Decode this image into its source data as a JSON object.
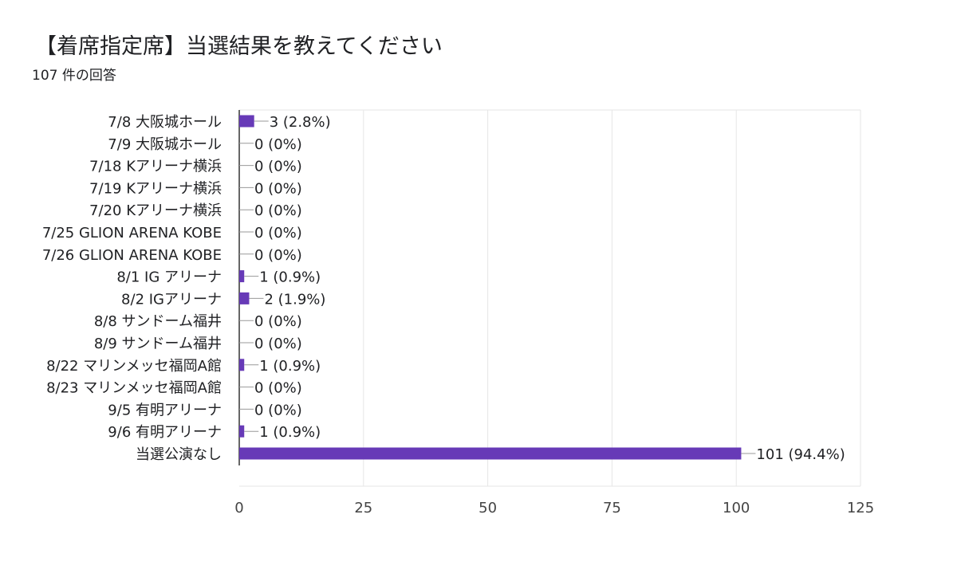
{
  "header": {
    "title": "【着席指定席】当選結果を教えてください",
    "response_count": "107 件の回答"
  },
  "colors": {
    "bar": "#673ab7",
    "grid": "#e6e6e6",
    "axis": "#333333",
    "leader": "#999999"
  },
  "chart_data": {
    "type": "bar",
    "orientation": "horizontal",
    "title": "【着席指定席】当選結果を教えてください",
    "categories": [
      "7/8 大阪城ホール",
      "7/9 大阪城ホール",
      "7/18 Kアリーナ横浜",
      "7/19 Kアリーナ横浜",
      "7/20 Kアリーナ横浜",
      "7/25 GLION ARENA KOBE",
      "7/26 GLION ARENA KOBE",
      "8/1 IG アリーナ",
      "8/2 IGアリーナ",
      "8/8 サンドーム福井",
      "8/9 サンドーム福井",
      "8/22 マリンメッセ福岡A館",
      "8/23 マリンメッセ福岡A館",
      "9/5 有明アリーナ",
      "9/6 有明アリーナ",
      "当選公演なし"
    ],
    "values": [
      3,
      0,
      0,
      0,
      0,
      0,
      0,
      1,
      2,
      0,
      0,
      1,
      0,
      0,
      1,
      101
    ],
    "value_labels": [
      "3 (2.8%)",
      "0 (0%)",
      "0 (0%)",
      "0 (0%)",
      "0 (0%)",
      "0 (0%)",
      "0 (0%)",
      "1 (0.9%)",
      "2 (1.9%)",
      "0 (0%)",
      "0 (0%)",
      "1 (0.9%)",
      "0 (0%)",
      "0 (0%)",
      "1 (0.9%)",
      "101 (94.4%)"
    ],
    "xlim": [
      0,
      125
    ],
    "xticks": [
      0,
      25,
      50,
      75,
      100,
      125
    ],
    "xtick_labels": [
      "0",
      "25",
      "50",
      "75",
      "100",
      "125"
    ],
    "grid": true,
    "legend": "none"
  }
}
